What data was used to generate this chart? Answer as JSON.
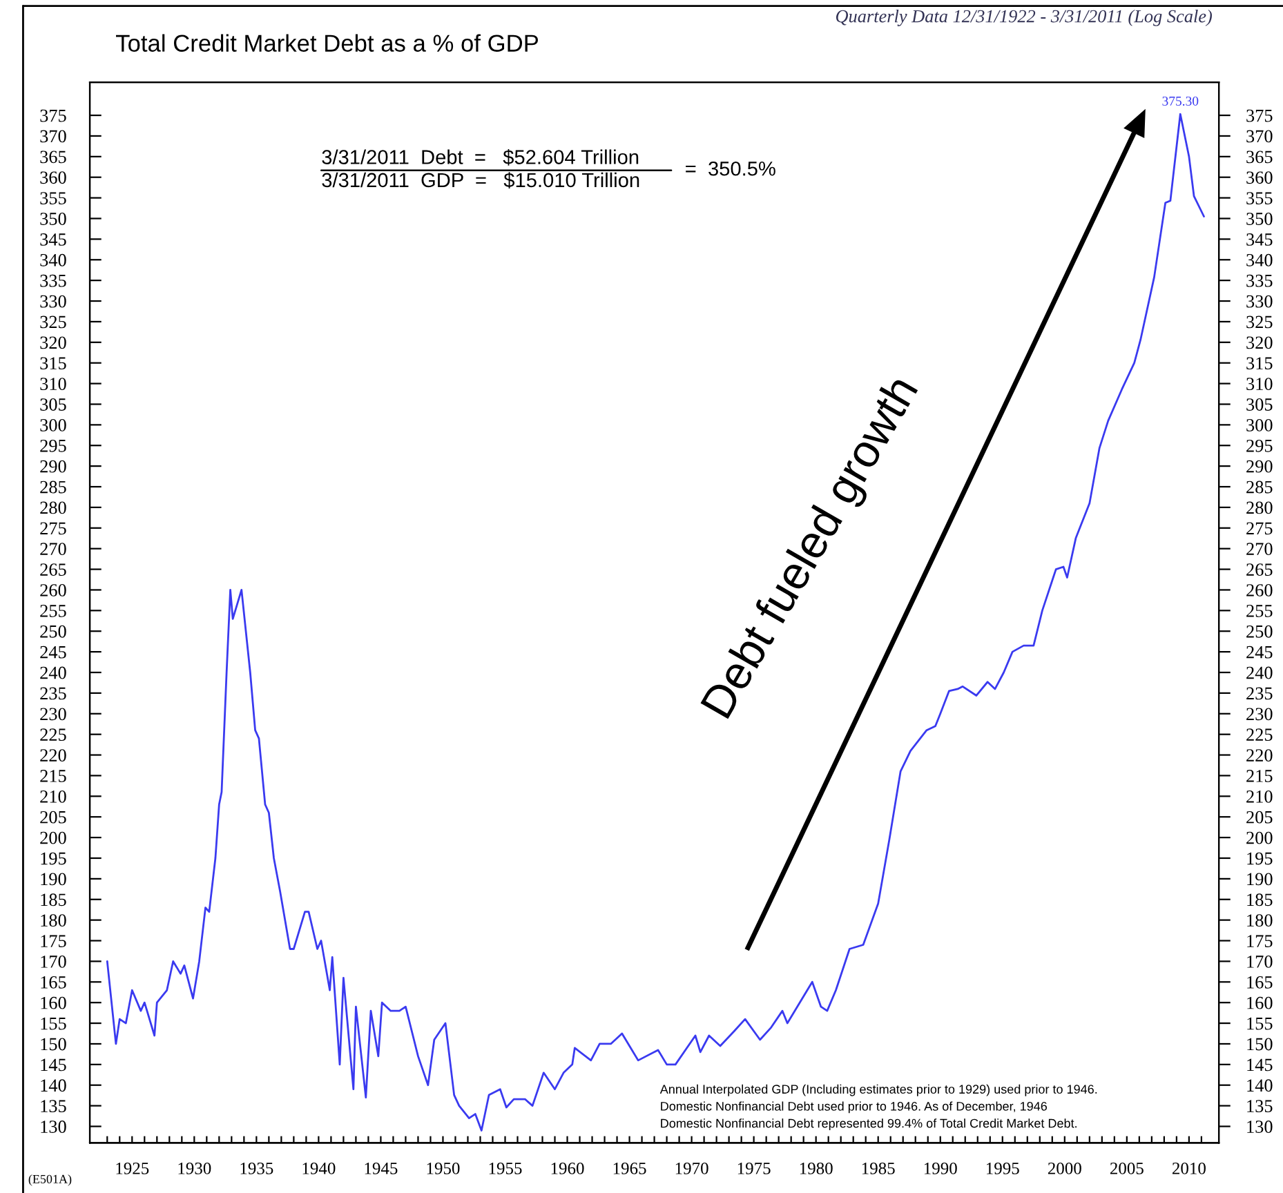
{
  "chart_data": {
    "type": "line",
    "title": "Total Credit Market Debt as a % of GDP",
    "subtitle": "Quarterly Data 12/31/1922 - 3/31/2011 (Log Scale)",
    "x": [
      1923.0,
      1923.7,
      1924.0,
      1924.5,
      1925.0,
      1925.7,
      1926.0,
      1926.8,
      1927.0,
      1927.8,
      1928.3,
      1928.9,
      1929.2,
      1929.9,
      1930.4,
      1930.9,
      1931.2,
      1931.7,
      1932.0,
      1932.2,
      1932.6,
      1932.9,
      1933.1,
      1933.8,
      1934.5,
      1934.9,
      1935.2,
      1935.7,
      1936.0,
      1936.4,
      1936.9,
      1937.7,
      1938.0,
      1938.9,
      1939.2,
      1939.9,
      1940.2,
      1940.9,
      1941.1,
      1941.7,
      1942.0,
      1942.8,
      1943.0,
      1943.8,
      1944.2,
      1944.8,
      1945.1,
      1945.8,
      1946.5,
      1947.0,
      1948.0,
      1948.8,
      1949.3,
      1950.2,
      1950.9,
      1951.3,
      1952.1,
      1952.6,
      1953.1,
      1953.7,
      1954.6,
      1955.1,
      1955.7,
      1956.6,
      1957.2,
      1958.1,
      1959.0,
      1959.7,
      1960.4,
      1960.6,
      1961.9,
      1962.6,
      1963.5,
      1964.4,
      1965.7,
      1967.3,
      1968.0,
      1968.7,
      1970.3,
      1970.7,
      1971.4,
      1972.3,
      1973.4,
      1974.3,
      1975.5,
      1976.4,
      1977.3,
      1977.7,
      1979.7,
      1980.4,
      1980.9,
      1981.6,
      1982.7,
      1983.8,
      1985.0,
      1985.9,
      1986.8,
      1987.6,
      1988.9,
      1989.6,
      1990.0,
      1990.7,
      1991.4,
      1991.8,
      1992.9,
      1993.8,
      1994.4,
      1995.1,
      1995.8,
      1996.7,
      1997.5,
      1998.2,
      1999.3,
      1999.9,
      2000.2,
      2000.9,
      2002.0,
      2002.8,
      2003.5,
      2004.6,
      2005.6,
      2006.1,
      2007.2,
      2008.1,
      2008.5,
      2009.3,
      2010.0,
      2010.4,
      2011.2
    ],
    "series": [
      {
        "color": "#3a3af0",
        "values": [
          170,
          150,
          156,
          155,
          163,
          158,
          160,
          152,
          160,
          163,
          170,
          167,
          169,
          161,
          170,
          183,
          182,
          195,
          208,
          211,
          240,
          260,
          253,
          260,
          240,
          226,
          224,
          208,
          206,
          195,
          187,
          173,
          173,
          182,
          182,
          173,
          175,
          163,
          171,
          145,
          166,
          139,
          159,
          137,
          158,
          147,
          160,
          158,
          158,
          159,
          147,
          140,
          151,
          155,
          137.6,
          135,
          132,
          133,
          129,
          137.6,
          139,
          134.6,
          136.6,
          136.6,
          135,
          143,
          139,
          143,
          145,
          149,
          146,
          150,
          150,
          152.5,
          146,
          148.5,
          145,
          145,
          152,
          148,
          152,
          149.5,
          153,
          156,
          151,
          154,
          158,
          155,
          165,
          159,
          158,
          163,
          173,
          174,
          184,
          199.5,
          216,
          221,
          226,
          227,
          230,
          235.5,
          236,
          236.6,
          234.4,
          237.7,
          236,
          240,
          245,
          246.5,
          246.5,
          255,
          265,
          265.6,
          263,
          272.6,
          281,
          294.4,
          301,
          308.6,
          315,
          320.6,
          335.8,
          353.8,
          354.3,
          375.3,
          365,
          355.4,
          350.5
        ]
      }
    ],
    "xlim": [
      1921.6,
      2012.4
    ],
    "xticks": [
      {
        "value": 1923,
        "label": null
      },
      {
        "value": 1924,
        "label": null
      },
      1925,
      {
        "value": 1926,
        "label": null
      },
      {
        "value": 1927,
        "label": null
      },
      {
        "value": 1928,
        "label": null
      },
      {
        "value": 1929,
        "label": null
      },
      1930,
      {
        "value": 1931,
        "label": null
      },
      {
        "value": 1932,
        "label": null
      },
      {
        "value": 1933,
        "label": null
      },
      {
        "value": 1934,
        "label": null
      },
      1935,
      {
        "value": 1936,
        "label": null
      },
      {
        "value": 1937,
        "label": null
      },
      {
        "value": 1938,
        "label": null
      },
      {
        "value": 1939,
        "label": null
      },
      1940,
      {
        "value": 1941,
        "label": null
      },
      {
        "value": 1942,
        "label": null
      },
      {
        "value": 1943,
        "label": null
      },
      {
        "value": 1944,
        "label": null
      },
      1945,
      {
        "value": 1946,
        "label": null
      },
      {
        "value": 1947,
        "label": null
      },
      {
        "value": 1948,
        "label": null
      },
      {
        "value": 1949,
        "label": null
      },
      1950,
      {
        "value": 1951,
        "label": null
      },
      {
        "value": 1952,
        "label": null
      },
      {
        "value": 1953,
        "label": null
      },
      {
        "value": 1954,
        "label": null
      },
      1955,
      {
        "value": 1956,
        "label": null
      },
      {
        "value": 1957,
        "label": null
      },
      {
        "value": 1958,
        "label": null
      },
      {
        "value": 1959,
        "label": null
      },
      1960,
      {
        "value": 1961,
        "label": null
      },
      {
        "value": 1962,
        "label": null
      },
      {
        "value": 1963,
        "label": null
      },
      {
        "value": 1964,
        "label": null
      },
      1965,
      {
        "value": 1966,
        "label": null
      },
      {
        "value": 1967,
        "label": null
      },
      {
        "value": 1968,
        "label": null
      },
      {
        "value": 1969,
        "label": null
      },
      1970,
      {
        "value": 1971,
        "label": null
      },
      {
        "value": 1972,
        "label": null
      },
      {
        "value": 1973,
        "label": null
      },
      {
        "value": 1974,
        "label": null
      },
      1975,
      {
        "value": 1976,
        "label": null
      },
      {
        "value": 1977,
        "label": null
      },
      {
        "value": 1978,
        "label": null
      },
      {
        "value": 1979,
        "label": null
      },
      1980,
      {
        "value": 1981,
        "label": null
      },
      {
        "value": 1982,
        "label": null
      },
      {
        "value": 1983,
        "label": null
      },
      {
        "value": 1984,
        "label": null
      },
      1985,
      {
        "value": 1986,
        "label": null
      },
      {
        "value": 1987,
        "label": null
      },
      {
        "value": 1988,
        "label": null
      },
      {
        "value": 1989,
        "label": null
      },
      1990,
      {
        "value": 1991,
        "label": null
      },
      {
        "value": 1992,
        "label": null
      },
      {
        "value": 1993,
        "label": null
      },
      {
        "value": 1994,
        "label": null
      },
      1995,
      {
        "value": 1996,
        "label": null
      },
      {
        "value": 1997,
        "label": null
      },
      {
        "value": 1998,
        "label": null
      },
      {
        "value": 1999,
        "label": null
      },
      2000,
      {
        "value": 2001,
        "label": null
      },
      {
        "value": 2002,
        "label": null
      },
      {
        "value": 2003,
        "label": null
      },
      {
        "value": 2004,
        "label": null
      },
      2005,
      {
        "value": 2006,
        "label": null
      },
      {
        "value": 2007,
        "label": null
      },
      {
        "value": 2008,
        "label": null
      },
      {
        "value": 2009,
        "label": null
      },
      2010,
      {
        "value": 2011,
        "label": null
      }
    ],
    "ylim": [
      126,
      383
    ],
    "yticks": [
      130,
      135,
      140,
      145,
      150,
      155,
      160,
      165,
      170,
      175,
      180,
      185,
      190,
      195,
      200,
      205,
      210,
      215,
      220,
      225,
      230,
      235,
      240,
      245,
      250,
      255,
      260,
      265,
      270,
      275,
      280,
      285,
      290,
      295,
      300,
      305,
      310,
      315,
      320,
      325,
      330,
      335,
      340,
      345,
      350,
      355,
      360,
      365,
      370,
      375
    ],
    "y2lim": [
      126,
      383
    ],
    "y2ticks": [
      130,
      135,
      140,
      145,
      150,
      155,
      160,
      165,
      170,
      175,
      180,
      185,
      190,
      195,
      200,
      205,
      210,
      215,
      220,
      225,
      230,
      235,
      240,
      245,
      250,
      255,
      260,
      265,
      270,
      275,
      280,
      285,
      290,
      295,
      300,
      305,
      310,
      315,
      320,
      325,
      330,
      335,
      340,
      345,
      350,
      355,
      360,
      365,
      370,
      375
    ],
    "grid": false,
    "legend": false,
    "marker": "none",
    "line_style": "solid",
    "annotations": [
      {
        "text": "375.30",
        "x": 2009.3,
        "y": 375.3
      },
      "3/31/2011  Debt  =   $52.604 Trillion",
      "3/31/2011  GDP  =   $15.010 Trillion",
      "=  350.5%",
      "Debt fueled growth",
      "Annual Interpolated GDP (Including estimates prior to 1929) used prior to 1946.\nDomestic Nonfinancial Debt used prior to 1946. As of December, 1946\nDomestic Nonfinancial Debt represented 99.4% of Total Credit Market Debt.",
      "(E501A)"
    ]
  }
}
